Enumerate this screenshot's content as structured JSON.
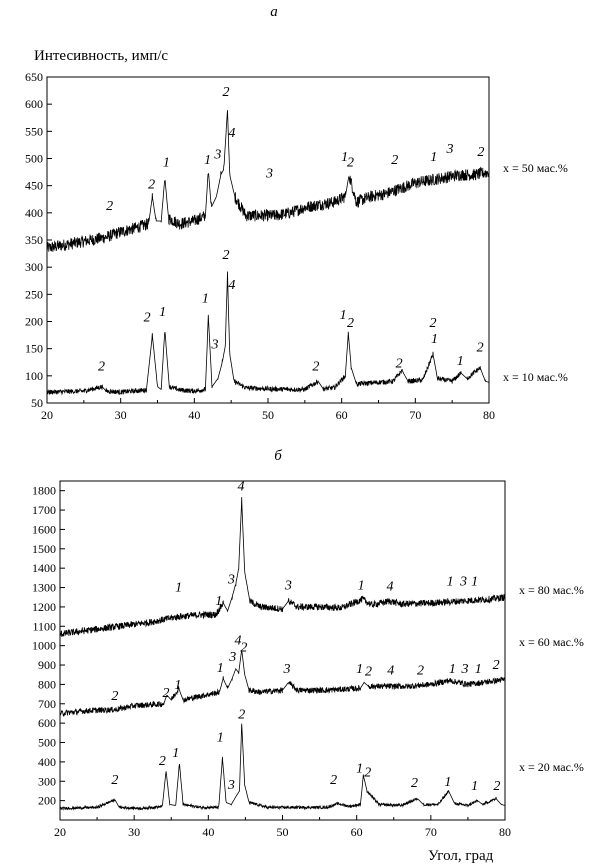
{
  "chart_data": [
    {
      "type": "line",
      "panel_label": "а",
      "ylabel": "Интесивность, имп/с",
      "xlabel": "",
      "xlim": [
        20,
        80
      ],
      "ylim": [
        50,
        650
      ],
      "xticks": [
        "20",
        "30",
        "40",
        "50",
        "60",
        "70",
        "80"
      ],
      "yticks": [
        "50",
        "100",
        "150",
        "200",
        "250",
        "300",
        "350",
        "400",
        "450",
        "500",
        "550",
        "600",
        "650"
      ],
      "series": [
        {
          "name": "x = 50 мас.%",
          "x": [
            20,
            22,
            24,
            26,
            28,
            30,
            32,
            33.8,
            34.3,
            34.8,
            35.5,
            36.0,
            36.5,
            38,
            40,
            41.5,
            41.9,
            42.3,
            43.0,
            43.6,
            44.0,
            44.5,
            44.8,
            45.5,
            47,
            49,
            51,
            53,
            55,
            57,
            59,
            60.5,
            61,
            62,
            64,
            66,
            68,
            70,
            72,
            74,
            76,
            78,
            80
          ],
          "y": [
            335,
            340,
            345,
            350,
            355,
            365,
            372,
            380,
            430,
            385,
            385,
            465,
            390,
            380,
            385,
            395,
            480,
            410,
            430,
            470,
            480,
            590,
            470,
            430,
            395,
            395,
            395,
            400,
            410,
            415,
            420,
            430,
            470,
            420,
            430,
            435,
            445,
            455,
            460,
            465,
            470,
            470,
            475
          ]
        },
        {
          "name": "x = 10 мас.%",
          "x": [
            20,
            25,
            27.5,
            28,
            30,
            33.5,
            34.3,
            35,
            35.5,
            36.0,
            36.6,
            38,
            40,
            41.5,
            41.9,
            42.4,
            43.2,
            43.8,
            44.2,
            44.5,
            44.8,
            45.4,
            47,
            50,
            53,
            55,
            56.8,
            57.5,
            59,
            60.5,
            60.9,
            61.3,
            62,
            65,
            67,
            68.2,
            69,
            71,
            72.4,
            73,
            75,
            76.2,
            77,
            78.8,
            79.5,
            80
          ],
          "y": [
            70,
            72,
            80,
            72,
            70,
            74,
            175,
            80,
            75,
            185,
            80,
            74,
            72,
            75,
            210,
            80,
            95,
            125,
            155,
            290,
            140,
            90,
            78,
            76,
            75,
            75,
            90,
            76,
            78,
            100,
            178,
            115,
            85,
            88,
            90,
            110,
            90,
            92,
            140,
            95,
            90,
            105,
            95,
            115,
            90,
            88
          ]
        }
      ],
      "series_labels": [
        "x = 50 мас.%",
        "x = 10 мас.%"
      ],
      "annotations": [
        {
          "text": "2",
          "x": 28.5,
          "y": 405
        },
        {
          "text": "2",
          "x": 34.2,
          "y": 445
        },
        {
          "text": "1",
          "x": 36.2,
          "y": 485
        },
        {
          "text": "1",
          "x": 41.8,
          "y": 490
        },
        {
          "text": "3",
          "x": 43.2,
          "y": 500
        },
        {
          "text": "2",
          "x": 44.3,
          "y": 615
        },
        {
          "text": "4",
          "x": 45.1,
          "y": 540
        },
        {
          "text": "3",
          "x": 50.2,
          "y": 465
        },
        {
          "text": "1",
          "x": 60.4,
          "y": 495
        },
        {
          "text": "2",
          "x": 61.2,
          "y": 485
        },
        {
          "text": "2",
          "x": 67.2,
          "y": 490
        },
        {
          "text": "1",
          "x": 72.5,
          "y": 495
        },
        {
          "text": "3",
          "x": 74.7,
          "y": 510
        },
        {
          "text": "2",
          "x": 78.9,
          "y": 505
        },
        {
          "text": "2",
          "x": 27.4,
          "y": 110
        },
        {
          "text": "2",
          "x": 33.6,
          "y": 200
        },
        {
          "text": "1",
          "x": 35.7,
          "y": 210
        },
        {
          "text": "1",
          "x": 41.5,
          "y": 235
        },
        {
          "text": "3",
          "x": 42.8,
          "y": 150
        },
        {
          "text": "2",
          "x": 44.3,
          "y": 315
        },
        {
          "text": "4",
          "x": 45.1,
          "y": 260
        },
        {
          "text": "2",
          "x": 56.5,
          "y": 110
        },
        {
          "text": "1",
          "x": 60.2,
          "y": 205
        },
        {
          "text": "2",
          "x": 61.2,
          "y": 190
        },
        {
          "text": "2",
          "x": 67.8,
          "y": 115
        },
        {
          "text": "2",
          "x": 72.4,
          "y": 190
        },
        {
          "text": "1",
          "x": 72.6,
          "y": 160
        },
        {
          "text": "1",
          "x": 76.1,
          "y": 120
        },
        {
          "text": "2",
          "x": 78.8,
          "y": 145
        }
      ]
    },
    {
      "type": "line",
      "panel_label": "б",
      "ylabel": "",
      "xlabel": "Угол, град",
      "xlim": [
        20,
        80
      ],
      "ylim": [
        100,
        1850
      ],
      "xticks": [
        "20",
        "30",
        "40",
        "50",
        "60",
        "70",
        "80"
      ],
      "yticks": [
        "200",
        "300",
        "400",
        "500",
        "600",
        "700",
        "800",
        "900",
        "1000",
        "1100",
        "1200",
        "1300",
        "1400",
        "1500",
        "1600",
        "1700",
        "1800"
      ],
      "series": [
        {
          "name": "x = 80 мас.%",
          "x": [
            20,
            24,
            28,
            32,
            36,
            39,
            41,
            42.0,
            42.6,
            43.2,
            43.7,
            44.1,
            44.5,
            44.9,
            45.6,
            47,
            50,
            50.8,
            52,
            55,
            58,
            60.8,
            62,
            64.5,
            66,
            70,
            74,
            78,
            80
          ],
          "y": [
            1060,
            1080,
            1100,
            1120,
            1150,
            1160,
            1160,
            1220,
            1180,
            1250,
            1320,
            1400,
            1750,
            1380,
            1230,
            1200,
            1190,
            1230,
            1200,
            1200,
            1195,
            1240,
            1210,
            1230,
            1215,
            1220,
            1230,
            1240,
            1250
          ]
        },
        {
          "name": "x = 60 мас.%",
          "x": [
            20,
            24,
            27.5,
            30,
            34,
            34.4,
            35,
            36.0,
            36.6,
            39,
            41.5,
            42.0,
            42.6,
            43.2,
            43.7,
            44.1,
            44.5,
            44.9,
            45.5,
            47,
            50,
            50.8,
            52,
            56,
            60.5,
            61.0,
            61.6,
            64,
            67,
            70,
            72.5,
            75,
            78,
            80
          ],
          "y": [
            650,
            665,
            670,
            690,
            700,
            745,
            720,
            780,
            720,
            740,
            760,
            830,
            780,
            830,
            880,
            860,
            980,
            850,
            770,
            760,
            770,
            810,
            770,
            770,
            780,
            810,
            790,
            790,
            790,
            800,
            820,
            800,
            815,
            825
          ]
        },
        {
          "name": "x = 20 мас.%",
          "x": [
            20,
            25,
            27.4,
            28,
            31,
            33.8,
            34.3,
            34.8,
            35.6,
            36.1,
            36.6,
            39,
            41.4,
            41.9,
            42.4,
            43.1,
            43.7,
            44.2,
            44.5,
            44.9,
            45.5,
            48,
            52,
            56,
            57.5,
            59,
            60.5,
            60.9,
            61.4,
            63,
            66,
            68.2,
            69,
            71,
            72.4,
            73.2,
            75,
            76.3,
            77,
            78.8,
            79.5,
            80
          ],
          "y": [
            160,
            165,
            205,
            165,
            160,
            170,
            355,
            180,
            175,
            395,
            180,
            165,
            165,
            420,
            190,
            180,
            220,
            250,
            600,
            280,
            190,
            165,
            165,
            165,
            185,
            170,
            180,
            330,
            250,
            180,
            175,
            210,
            180,
            180,
            250,
            185,
            175,
            200,
            180,
            210,
            180,
            175
          ]
        }
      ],
      "series_labels": [
        "x = 80 мас.%",
        "x = 60 мас.%",
        "x = 20 мас.%"
      ],
      "annotations": [
        {
          "text": "4",
          "x": 44.4,
          "y": 1800
        },
        {
          "text": "1",
          "x": 36.0,
          "y": 1280
        },
        {
          "text": "1",
          "x": 41.4,
          "y": 1210
        },
        {
          "text": "3",
          "x": 43.1,
          "y": 1320
        },
        {
          "text": "3",
          "x": 50.8,
          "y": 1290
        },
        {
          "text": "1",
          "x": 60.6,
          "y": 1290
        },
        {
          "text": "4",
          "x": 64.5,
          "y": 1285
        },
        {
          "text": "1",
          "x": 72.6,
          "y": 1310
        },
        {
          "text": "3",
          "x": 74.4,
          "y": 1310
        },
        {
          "text": "1",
          "x": 75.9,
          "y": 1310
        },
        {
          "text": "2",
          "x": 27.4,
          "y": 720
        },
        {
          "text": "2",
          "x": 34.3,
          "y": 735
        },
        {
          "text": "1",
          "x": 35.9,
          "y": 775
        },
        {
          "text": "1",
          "x": 41.6,
          "y": 865
        },
        {
          "text": "3",
          "x": 43.3,
          "y": 920
        },
        {
          "text": "4",
          "x": 44.0,
          "y": 1005
        },
        {
          "text": "2",
          "x": 44.8,
          "y": 970
        },
        {
          "text": "3",
          "x": 50.6,
          "y": 860
        },
        {
          "text": "1",
          "x": 60.4,
          "y": 860
        },
        {
          "text": "2",
          "x": 61.6,
          "y": 845
        },
        {
          "text": "4",
          "x": 64.6,
          "y": 850
        },
        {
          "text": "2",
          "x": 68.6,
          "y": 850
        },
        {
          "text": "1",
          "x": 72.9,
          "y": 860
        },
        {
          "text": "3",
          "x": 74.6,
          "y": 860
        },
        {
          "text": "1",
          "x": 76.4,
          "y": 860
        },
        {
          "text": "2",
          "x": 78.8,
          "y": 880
        },
        {
          "text": "2",
          "x": 27.4,
          "y": 285
        },
        {
          "text": "2",
          "x": 33.8,
          "y": 385
        },
        {
          "text": "1",
          "x": 35.6,
          "y": 425
        },
        {
          "text": "1",
          "x": 41.6,
          "y": 505
        },
        {
          "text": "3",
          "x": 43.1,
          "y": 260
        },
        {
          "text": "2",
          "x": 44.5,
          "y": 625
        },
        {
          "text": "2",
          "x": 56.9,
          "y": 285
        },
        {
          "text": "1",
          "x": 60.4,
          "y": 345
        },
        {
          "text": "2",
          "x": 61.5,
          "y": 325
        },
        {
          "text": "2",
          "x": 67.8,
          "y": 270
        },
        {
          "text": "1",
          "x": 72.3,
          "y": 275
        },
        {
          "text": "1",
          "x": 75.9,
          "y": 255
        },
        {
          "text": "2",
          "x": 78.9,
          "y": 255
        }
      ]
    }
  ]
}
